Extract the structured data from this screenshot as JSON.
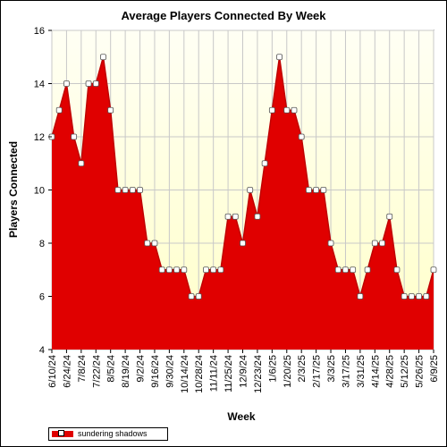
{
  "chart_data": {
    "type": "area",
    "title": "Average Players Connected By Week",
    "xlabel": "Week",
    "ylabel": "Players Connected",
    "ylim": [
      4,
      16
    ],
    "yticks": [
      4,
      6,
      8,
      10,
      12,
      14,
      16
    ],
    "grid": true,
    "legend_position": "bottom-left",
    "colors": {
      "fill": "#e00000",
      "line": "#c00000",
      "background_top": "#fffff0",
      "background_bottom": "#ffffcc"
    },
    "x": [
      "6/10/24",
      "6/17/24",
      "6/24/24",
      "7/1/24",
      "7/8/24",
      "7/15/24",
      "7/22/24",
      "7/29/24",
      "8/5/24",
      "8/12/24",
      "8/19/24",
      "8/26/24",
      "9/2/24",
      "9/9/24",
      "9/16/24",
      "9/23/24",
      "9/30/24",
      "10/7/24",
      "10/14/24",
      "10/21/24",
      "10/28/24",
      "11/4/24",
      "11/11/24",
      "11/18/24",
      "11/25/24",
      "12/2/24",
      "12/9/24",
      "12/16/24",
      "12/23/24",
      "12/30/24",
      "1/6/25",
      "1/13/25",
      "1/20/25",
      "1/27/25",
      "2/3/25",
      "2/10/25",
      "2/17/25",
      "2/24/25",
      "3/3/25",
      "3/10/25",
      "3/17/25",
      "3/24/25",
      "3/31/25",
      "4/7/25",
      "4/14/25",
      "4/21/25",
      "4/28/25",
      "5/5/25",
      "5/12/25",
      "5/19/25",
      "5/26/25",
      "6/2/25",
      "6/9/25"
    ],
    "tick_labels": [
      "6/10/24",
      "6/24/24",
      "7/8/24",
      "7/22/24",
      "8/5/24",
      "8/19/24",
      "9/2/24",
      "9/16/24",
      "9/30/24",
      "10/14/24",
      "10/28/24",
      "11/11/24",
      "11/25/24",
      "12/9/24",
      "12/23/24",
      "1/6/25",
      "1/20/25",
      "2/3/25",
      "2/17/25",
      "3/3/25",
      "3/17/25",
      "3/31/25",
      "4/14/25",
      "4/28/25",
      "5/12/25",
      "5/26/25",
      "6/9/25"
    ],
    "series": [
      {
        "name": "sundering shadows",
        "values": [
          12,
          13,
          14,
          12,
          11,
          14,
          14,
          15,
          13,
          10,
          10,
          10,
          10,
          8,
          8,
          7,
          7,
          7,
          7,
          6,
          6,
          7,
          7,
          7,
          9,
          9,
          8,
          10,
          9,
          11,
          13,
          15,
          13,
          13,
          12,
          10,
          10,
          10,
          8,
          7,
          7,
          7,
          6,
          7,
          8,
          8,
          9,
          7,
          6,
          6,
          6,
          6,
          7
        ]
      }
    ]
  }
}
